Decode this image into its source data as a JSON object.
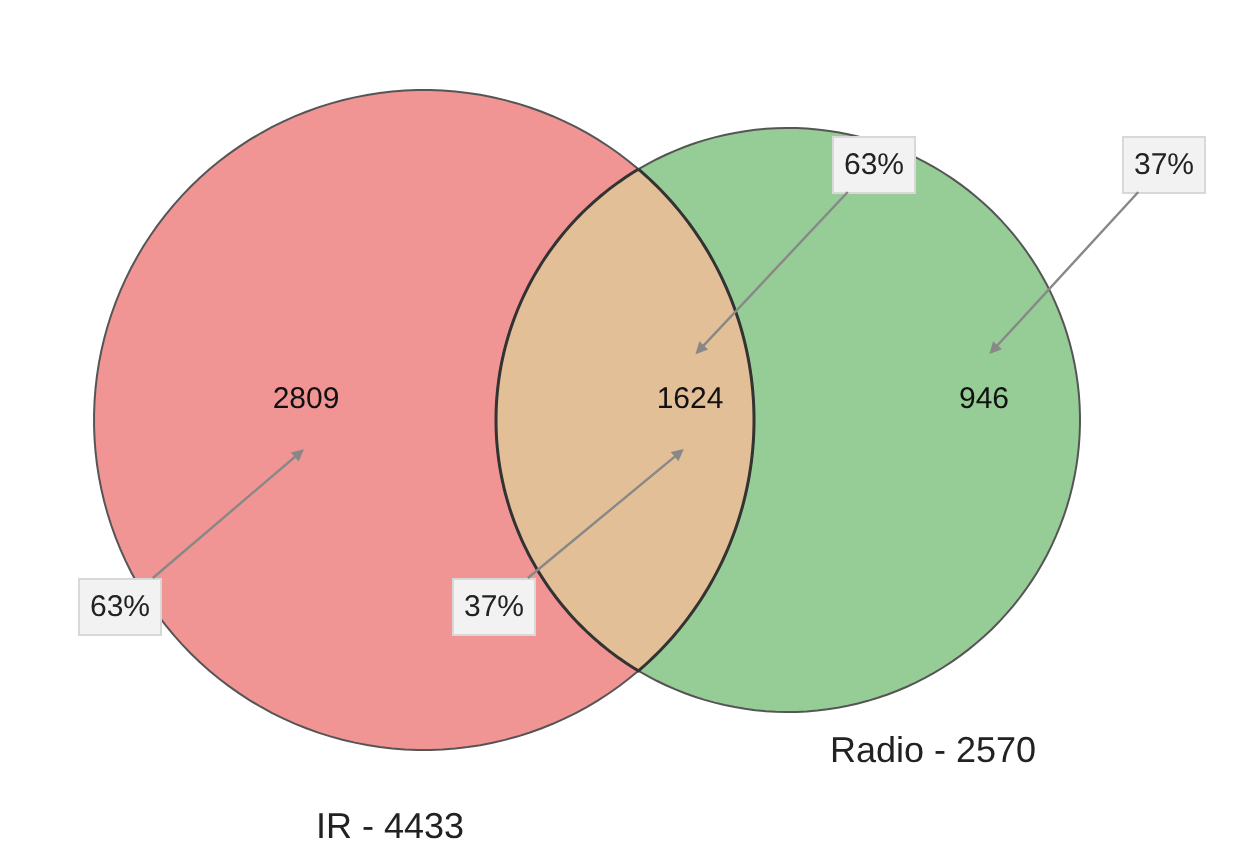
{
  "chart_data": {
    "type": "other",
    "categories": [
      null,
      null,
      null
    ],
    "values": [
      2809,
      1624,
      946
    ],
    "colors": [
      "#f09494",
      "#e2bf97",
      "#96cc96"
    ],
    "data_labels": true,
    "annotations": [
      "IR - 4433",
      "Radio - 2570",
      "63%",
      "37%",
      "63%",
      "37%"
    ]
  }
}
